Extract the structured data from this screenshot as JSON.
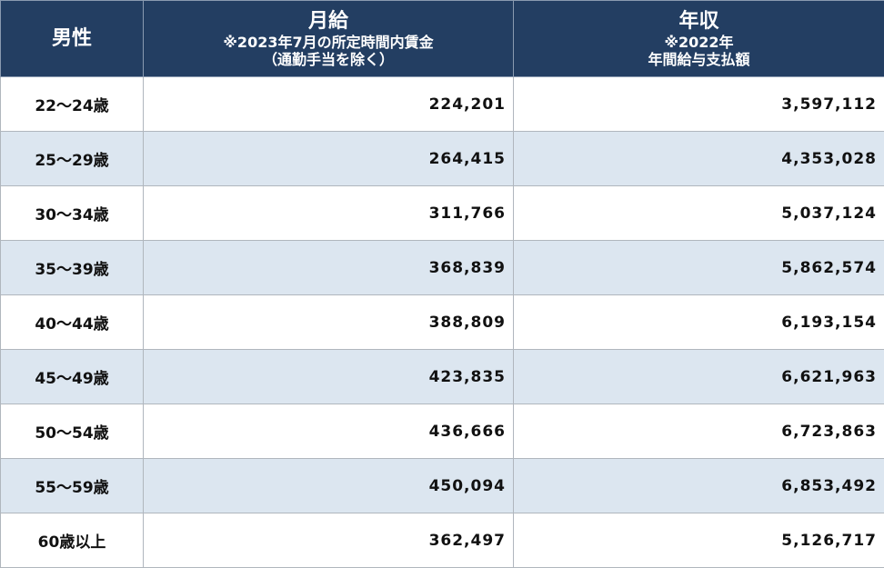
{
  "table": {
    "header": [
      {
        "title": "男性",
        "notes": []
      },
      {
        "title": "月給",
        "notes": [
          "※2023年7月の所定時間内賃金",
          "（通勤手当を除く）"
        ]
      },
      {
        "title": "年収",
        "notes": [
          "※2022年",
          "年間給与支払額"
        ]
      }
    ],
    "rows": [
      [
        "22～24歳",
        "224,201",
        "3,597,112"
      ],
      [
        "25～29歳",
        "264,415",
        "4,353,028"
      ],
      [
        "30～34歳",
        "311,766",
        "5,037,124"
      ],
      [
        "35～39歳",
        "368,839",
        "5,862,574"
      ],
      [
        "40～44歳",
        "388,809",
        "6,193,154"
      ],
      [
        "45～49歳",
        "423,835",
        "6,621,963"
      ],
      [
        "50～54歳",
        "436,666",
        "6,723,863"
      ],
      [
        "55～59歳",
        "450,094",
        "6,853,492"
      ],
      [
        "60歳以上",
        "362,497",
        "5,126,717"
      ]
    ]
  }
}
